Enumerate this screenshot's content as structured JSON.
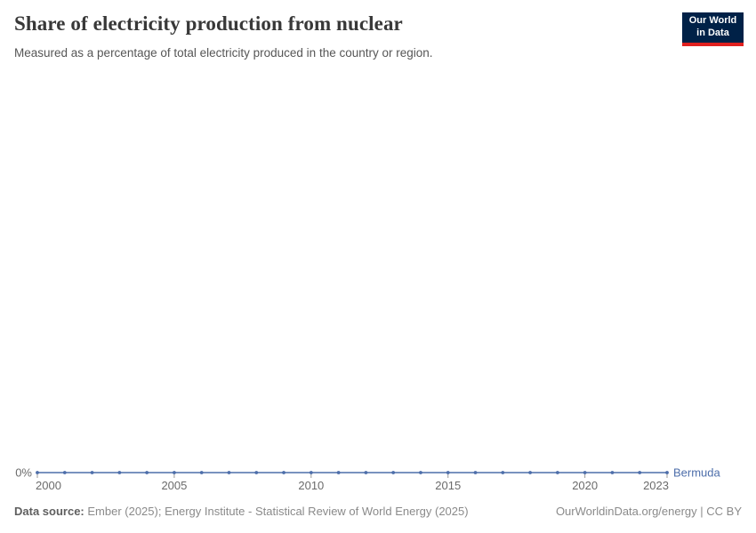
{
  "header": {
    "title": "Share of electricity production from nuclear",
    "subtitle": "Measured as a percentage of total electricity produced in the country or region."
  },
  "logo": {
    "line1": "Our World",
    "line2": "in Data"
  },
  "chart_data": {
    "type": "line",
    "x": [
      2000,
      2001,
      2002,
      2003,
      2004,
      2005,
      2006,
      2007,
      2008,
      2009,
      2010,
      2011,
      2012,
      2013,
      2014,
      2015,
      2016,
      2017,
      2018,
      2019,
      2020,
      2021,
      2022,
      2023
    ],
    "series": [
      {
        "name": "Bermuda",
        "color": "#4d6eaa",
        "values": [
          0,
          0,
          0,
          0,
          0,
          0,
          0,
          0,
          0,
          0,
          0,
          0,
          0,
          0,
          0,
          0,
          0,
          0,
          0,
          0,
          0,
          0,
          0,
          0
        ]
      }
    ],
    "x_ticks": [
      2000,
      2005,
      2010,
      2015,
      2020,
      2023
    ],
    "x_range": [
      2000,
      2023
    ],
    "ylim": [
      0,
      0
    ],
    "y_axis_label": "0%",
    "grid": false,
    "legend_position": "end-of-line-label"
  },
  "footer": {
    "source_label": "Data source:",
    "source_text": " Ember (2025); Energy Institute - Statistical Review of World Energy (2025)",
    "rights": "OurWorldinData.org/energy | CC BY"
  },
  "colors": {
    "accent_blue": "#4d6eaa",
    "logo_bg": "#002147",
    "logo_stripe": "#e0201f",
    "axis_text": "#6b6b6b",
    "tick": "#999999"
  }
}
